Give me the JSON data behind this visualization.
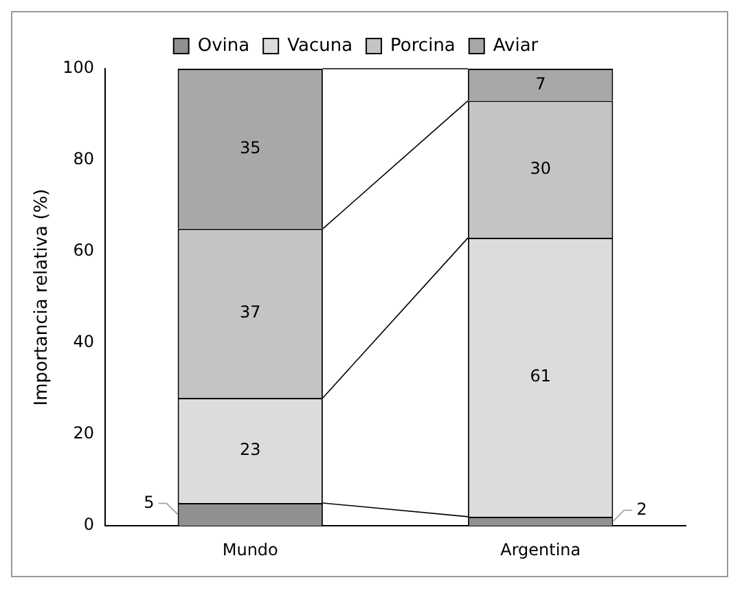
{
  "chart_data": {
    "type": "bar",
    "stacked": true,
    "ylabel": "Importancia relativa (%)",
    "categories": [
      "Mundo",
      "Argentina"
    ],
    "series": [
      {
        "name": "Ovina",
        "color": "#909090",
        "values": [
          5,
          2
        ]
      },
      {
        "name": "Vacuna",
        "color": "#dcdcdc",
        "values": [
          23,
          61
        ]
      },
      {
        "name": "Porcina",
        "color": "#c4c4c4",
        "values": [
          37,
          30
        ]
      },
      {
        "name": "Aviar",
        "color": "#a8a8a8",
        "values": [
          35,
          7
        ]
      }
    ],
    "ylim": [
      0,
      100
    ],
    "yticks": [
      0,
      20,
      40,
      60,
      80,
      100
    ],
    "grid": false,
    "legend": "top",
    "data_labels": true
  }
}
